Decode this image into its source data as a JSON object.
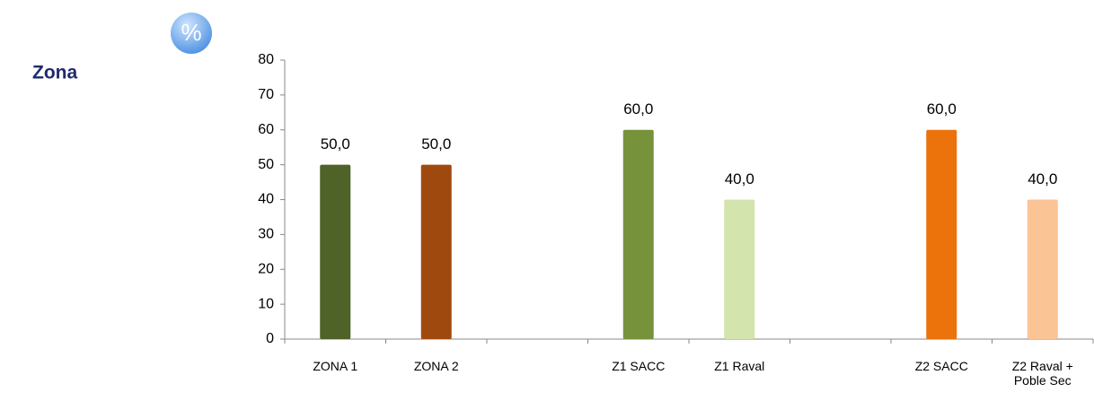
{
  "chart_data": {
    "type": "bar",
    "title": "Zona",
    "ylabel": "%",
    "categories": [
      "ZONA 1",
      "ZONA 2",
      null,
      "Z1 SACC",
      "Z1 Raval",
      null,
      "Z2 SACC",
      "Z2 Raval + Poble Sec"
    ],
    "values": [
      50,
      50,
      null,
      60,
      40,
      null,
      60,
      40
    ],
    "value_labels": [
      "50,0",
      "50,0",
      null,
      "60,0",
      "40,0",
      null,
      "60,0",
      "40,0"
    ],
    "colors": [
      "#4f6228",
      "#a0490f",
      null,
      "#76933c",
      "#d3e4ad",
      null,
      "#ec720c",
      "#fbc495"
    ],
    "ylim": [
      0,
      80
    ],
    "yticks": [
      0,
      10,
      20,
      30,
      40,
      50,
      60,
      70,
      80
    ],
    "grid": false
  }
}
